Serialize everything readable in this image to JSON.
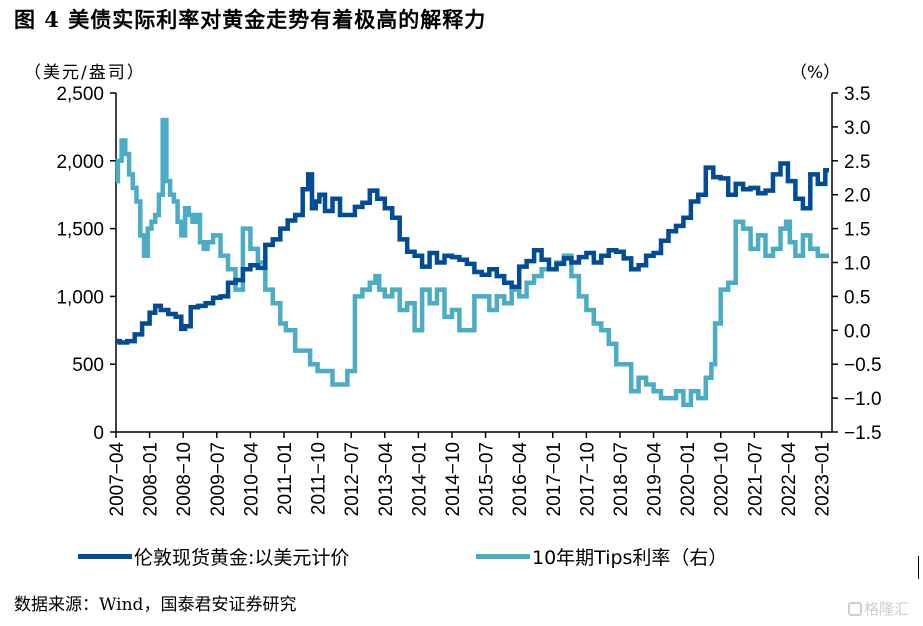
{
  "title": "图 4 美债实际利率对黄金走势有着极高的解释力",
  "source": "数据来源：Wind，国泰君安证券研究",
  "watermark": "格隆汇",
  "chart_data": {
    "type": "line",
    "title": "图 4 美债实际利率对黄金走势有着极高的解释力",
    "ylabel_left": "（美元/盎司）",
    "ylabel_right": "（%）",
    "ylim_left": [
      0,
      2500
    ],
    "ylim_right": [
      -1.5,
      3.5
    ],
    "yticks_left": [
      "0",
      "500",
      "1,000",
      "1,500",
      "2,000",
      "2,500"
    ],
    "yticks_left_values": [
      0,
      500,
      1000,
      1500,
      2000,
      2500
    ],
    "yticks_right": [
      "-1.5",
      "-1.0",
      "-0.5",
      "0.0",
      "0.5",
      "1.0",
      "1.5",
      "2.0",
      "2.5",
      "3.0",
      "3.5"
    ],
    "yticks_right_values": [
      -1.5,
      -1.0,
      -0.5,
      0.0,
      0.5,
      1.0,
      1.5,
      2.0,
      2.5,
      3.0,
      3.5
    ],
    "xticks": [
      "2007-04",
      "2008-01",
      "2008-10",
      "2009-07",
      "2010-04",
      "2011-01",
      "2011-10",
      "2012-07",
      "2013-04",
      "2014-01",
      "2014-10",
      "2015-07",
      "2016-04",
      "2017-01",
      "2017-10",
      "2018-07",
      "2019-04",
      "2020-01",
      "2020-10",
      "2021-07",
      "2022-04",
      "2023-01"
    ],
    "x_start": "2007-04",
    "grid": false,
    "legend_position": "bottom",
    "colors": {
      "gold": "#004c97",
      "tips": "#4bacc6"
    },
    "series": [
      {
        "name": "伦敦现货黄金:以美元计价",
        "axis": "left",
        "x_months": [
          0,
          2,
          4,
          6,
          8,
          10,
          11,
          13,
          15,
          17,
          18,
          19,
          21,
          23,
          25,
          27,
          29,
          31,
          33,
          35,
          37,
          39,
          41,
          43,
          45,
          47,
          49,
          51,
          52,
          53,
          54,
          55,
          57,
          59,
          61,
          63,
          65,
          67,
          69,
          71,
          73,
          75,
          77,
          79,
          81,
          83,
          85,
          87,
          89,
          91,
          93,
          95,
          97,
          99,
          101,
          103,
          105,
          107,
          109,
          111,
          113,
          115,
          117,
          119,
          121,
          123,
          125,
          127,
          129,
          131,
          133,
          135,
          137,
          139,
          141,
          143,
          145,
          147,
          149,
          151,
          153,
          155,
          157,
          159,
          161,
          163,
          165,
          167,
          169,
          171,
          173,
          175,
          177,
          179,
          181,
          183,
          185,
          187,
          189,
          191
        ],
        "values": [
          670,
          660,
          670,
          720,
          800,
          880,
          930,
          900,
          870,
          850,
          760,
          780,
          920,
          930,
          950,
          990,
          1000,
          1100,
          1120,
          1200,
          1230,
          1210,
          1380,
          1420,
          1500,
          1560,
          1600,
          1790,
          1900,
          1650,
          1700,
          1750,
          1630,
          1720,
          1600,
          1600,
          1660,
          1690,
          1780,
          1720,
          1650,
          1580,
          1420,
          1330,
          1300,
          1220,
          1320,
          1250,
          1300,
          1290,
          1270,
          1240,
          1180,
          1160,
          1200,
          1150,
          1100,
          1070,
          1220,
          1260,
          1340,
          1270,
          1200,
          1240,
          1280,
          1250,
          1290,
          1320,
          1250,
          1300,
          1340,
          1330,
          1280,
          1200,
          1230,
          1300,
          1320,
          1410,
          1480,
          1520,
          1580,
          1700,
          1750,
          1950,
          1880,
          1870,
          1750,
          1830,
          1790,
          1800,
          1760,
          1780,
          1900,
          1980,
          1850,
          1720,
          1650,
          1900,
          1830,
          1930
        ],
        "color": "#004c97"
      },
      {
        "name": "10年期Tips利率（右）",
        "axis": "right",
        "x_months": [
          0,
          1,
          2,
          3,
          4,
          5,
          6,
          7,
          8,
          9,
          10,
          11,
          12,
          13,
          14,
          15,
          16,
          17,
          18,
          19,
          20,
          21,
          22,
          23,
          24,
          25,
          27,
          29,
          31,
          33,
          35,
          37,
          39,
          41,
          43,
          45,
          46,
          47,
          49,
          51,
          53,
          55,
          57,
          59,
          61,
          63,
          65,
          67,
          69,
          70,
          71,
          73,
          75,
          77,
          79,
          81,
          83,
          85,
          87,
          89,
          91,
          93,
          95,
          97,
          99,
          101,
          103,
          105,
          107,
          109,
          111,
          113,
          115,
          117,
          119,
          121,
          123,
          125,
          127,
          129,
          131,
          133,
          135,
          137,
          139,
          141,
          143,
          145,
          147,
          149,
          151,
          153,
          155,
          157,
          159,
          160,
          161,
          163,
          165,
          167,
          169,
          171,
          173,
          175,
          177,
          179,
          180,
          181,
          183,
          185,
          187,
          189,
          191
        ],
        "values": [
          2.2,
          2.5,
          2.8,
          2.6,
          2.3,
          2.1,
          1.9,
          1.4,
          1.1,
          1.5,
          1.6,
          1.7,
          2.0,
          3.1,
          2.2,
          2.0,
          1.9,
          1.6,
          1.4,
          1.8,
          1.7,
          1.6,
          1.7,
          1.3,
          1.2,
          1.3,
          1.4,
          1.1,
          0.9,
          0.6,
          1.5,
          1.2,
          1.0,
          0.6,
          0.4,
          0.1,
          0.0,
          0.0,
          -0.3,
          -0.3,
          -0.5,
          -0.6,
          -0.6,
          -0.8,
          -0.8,
          -0.6,
          0.5,
          0.6,
          0.7,
          0.8,
          0.6,
          0.5,
          0.6,
          0.3,
          0.4,
          0.0,
          0.6,
          0.4,
          0.6,
          0.2,
          0.3,
          0.0,
          0.0,
          0.5,
          0.5,
          0.3,
          0.5,
          0.4,
          0.6,
          0.5,
          0.7,
          0.8,
          0.9,
          0.9,
          1.0,
          1.1,
          0.8,
          0.5,
          0.3,
          0.1,
          0.0,
          -0.2,
          -0.5,
          -0.5,
          -0.9,
          -0.7,
          -0.8,
          -0.9,
          -1.0,
          -1.0,
          -0.9,
          -1.1,
          -0.9,
          -1.0,
          -0.7,
          -0.5,
          0.1,
          0.6,
          0.7,
          1.6,
          1.5,
          1.2,
          1.4,
          1.1,
          1.2,
          1.5,
          1.6,
          1.3,
          1.1,
          1.4,
          1.2,
          1.1,
          1.1
        ],
        "color": "#4bacc6"
      }
    ]
  }
}
